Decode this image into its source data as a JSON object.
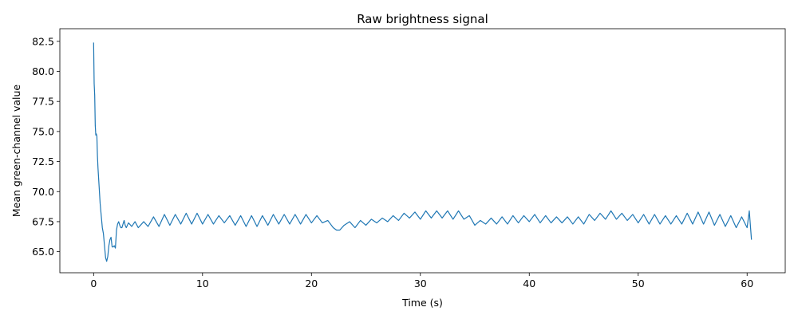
{
  "chart_data": {
    "type": "line",
    "title": "Raw brightness signal",
    "xlabel": "Time (s)",
    "ylabel": "Mean green-channel value",
    "xlim": [
      -3.1,
      63.5
    ],
    "ylim": [
      63.25,
      83.55
    ],
    "x_ticks": [
      0,
      10,
      20,
      30,
      40,
      50,
      60
    ],
    "x_tick_labels": [
      "0",
      "10",
      "20",
      "30",
      "40",
      "50",
      "60"
    ],
    "y_ticks": [
      65.0,
      67.5,
      70.0,
      72.5,
      75.0,
      77.5,
      80.0,
      82.5
    ],
    "y_tick_labels": [
      "65.0",
      "67.5",
      "70.0",
      "72.5",
      "75.0",
      "77.5",
      "80.0",
      "82.5"
    ],
    "grid": false,
    "line_color": "#1f77b4",
    "series": [
      {
        "x": [
          0.0,
          0.05,
          0.1,
          0.15,
          0.2,
          0.25,
          0.3,
          0.35,
          0.4,
          0.5,
          0.6,
          0.7,
          0.8,
          0.9,
          1.0,
          1.1,
          1.2,
          1.3,
          1.4,
          1.5,
          1.6,
          1.7,
          1.8,
          1.9,
          2.0,
          2.1,
          2.2,
          2.3,
          2.4,
          2.5,
          2.6,
          2.7,
          2.8,
          2.9,
          3.0,
          3.2,
          3.5,
          3.8,
          4.1,
          4.6,
          5.0,
          5.5,
          6.0,
          6.5,
          7.0,
          7.5,
          8.0,
          8.5,
          9.0,
          9.5,
          10.0,
          10.5,
          11.0,
          11.5,
          12.0,
          12.5,
          13.0,
          13.5,
          14.0,
          14.5,
          15.0,
          15.5,
          16.0,
          16.5,
          17.0,
          17.5,
          18.0,
          18.5,
          19.0,
          19.5,
          20.0,
          20.5,
          21.0,
          21.5,
          22.0,
          22.3,
          22.6,
          23.0,
          23.5,
          24.0,
          24.5,
          25.0,
          25.5,
          26.0,
          26.5,
          27.0,
          27.5,
          28.0,
          28.5,
          29.0,
          29.5,
          30.0,
          30.5,
          31.0,
          31.5,
          32.0,
          32.5,
          33.0,
          33.5,
          34.0,
          34.5,
          35.0,
          35.5,
          36.0,
          36.5,
          37.0,
          37.5,
          38.0,
          38.5,
          39.0,
          39.5,
          40.0,
          40.5,
          41.0,
          41.5,
          42.0,
          42.5,
          43.0,
          43.5,
          44.0,
          44.5,
          45.0,
          45.5,
          46.0,
          46.5,
          47.0,
          47.5,
          48.0,
          48.5,
          49.0,
          49.5,
          50.0,
          50.5,
          51.0,
          51.5,
          52.0,
          52.5,
          53.0,
          53.5,
          54.0,
          54.5,
          55.0,
          55.5,
          56.0,
          56.5,
          57.0,
          57.5,
          58.0,
          58.5,
          59.0,
          59.5,
          60.0,
          60.2,
          60.4
        ],
        "y": [
          82.4,
          79.0,
          78.0,
          75.5,
          74.7,
          74.8,
          74.6,
          73.0,
          72.0,
          70.5,
          69.0,
          68.0,
          67.0,
          66.5,
          65.5,
          64.5,
          64.2,
          64.6,
          65.5,
          66.0,
          66.2,
          65.4,
          65.4,
          65.5,
          65.3,
          66.8,
          67.3,
          67.5,
          67.2,
          67.0,
          67.0,
          67.3,
          67.6,
          67.2,
          67.0,
          67.4,
          67.1,
          67.5,
          67.0,
          67.5,
          67.1,
          67.9,
          67.1,
          68.1,
          67.2,
          68.1,
          67.3,
          68.2,
          67.3,
          68.2,
          67.3,
          68.1,
          67.3,
          68.0,
          67.4,
          68.0,
          67.2,
          68.0,
          67.1,
          68.0,
          67.1,
          68.0,
          67.2,
          68.1,
          67.3,
          68.1,
          67.3,
          68.1,
          67.3,
          68.1,
          67.4,
          68.0,
          67.4,
          67.6,
          67.0,
          66.8,
          66.8,
          67.2,
          67.5,
          67.0,
          67.6,
          67.2,
          67.7,
          67.4,
          67.8,
          67.5,
          68.0,
          67.6,
          68.2,
          67.8,
          68.3,
          67.7,
          68.4,
          67.8,
          68.4,
          67.8,
          68.4,
          67.7,
          68.4,
          67.7,
          68.0,
          67.2,
          67.6,
          67.3,
          67.8,
          67.3,
          67.9,
          67.3,
          68.0,
          67.4,
          68.0,
          67.5,
          68.1,
          67.4,
          68.0,
          67.4,
          67.9,
          67.4,
          67.9,
          67.3,
          67.9,
          67.3,
          68.1,
          67.6,
          68.2,
          67.7,
          68.4,
          67.7,
          68.2,
          67.6,
          68.1,
          67.4,
          68.1,
          67.3,
          68.1,
          67.3,
          68.0,
          67.3,
          68.0,
          67.3,
          68.2,
          67.3,
          68.3,
          67.3,
          68.3,
          67.2,
          68.1,
          67.1,
          68.0,
          67.0,
          67.9,
          67.0,
          68.4,
          66.0
        ]
      }
    ]
  }
}
